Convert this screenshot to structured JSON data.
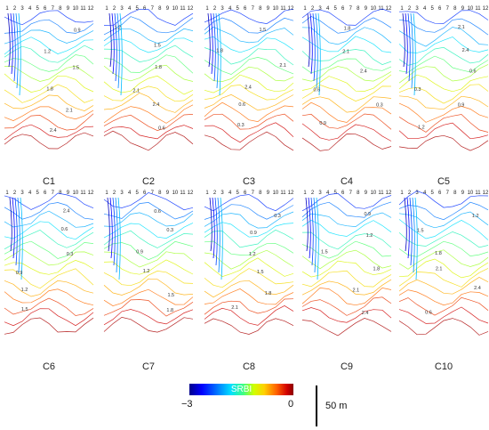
{
  "panels": [
    {
      "label": "C1"
    },
    {
      "label": "C2"
    },
    {
      "label": "C3"
    },
    {
      "label": "C4"
    },
    {
      "label": "C5"
    },
    {
      "label": "C6"
    },
    {
      "label": "C7"
    },
    {
      "label": "C8"
    },
    {
      "label": "C9"
    },
    {
      "label": "C10"
    }
  ],
  "profile_numbers": [
    "1",
    "2",
    "3",
    "4",
    "5",
    "6",
    "7",
    "8",
    "9",
    "10",
    "11",
    "12"
  ],
  "contour_labels": [
    "0.9",
    "1.2",
    "1.5",
    "1.8",
    "2.1",
    "2.4",
    "0.6",
    "0.3"
  ],
  "colorbar": {
    "title": "SRBI",
    "min_label": "−3",
    "max_label": "0",
    "colors": [
      "#00008b",
      "#0000ff",
      "#0080ff",
      "#00e0ff",
      "#40ff80",
      "#d0ff00",
      "#ffd000",
      "#ff6000",
      "#d00000",
      "#8b0000"
    ]
  },
  "scale_bar": {
    "label": "50 m"
  }
}
